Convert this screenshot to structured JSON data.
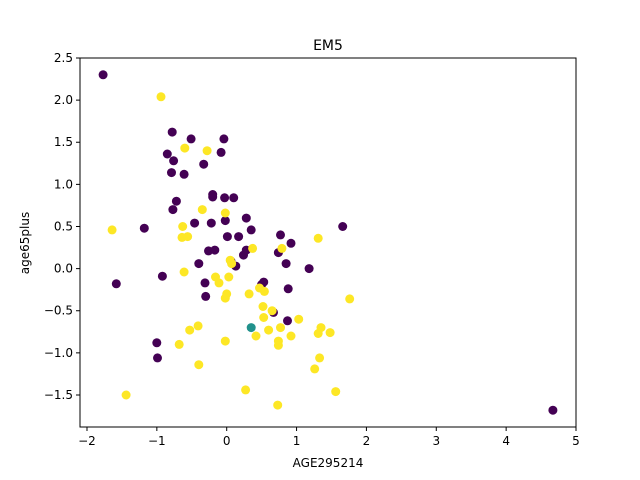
{
  "chart_data": {
    "type": "scatter",
    "title": "EM5",
    "xlabel": "AGE295214",
    "ylabel": "age65plus",
    "xlim": [
      -2.1,
      5.0
    ],
    "ylim": [
      -1.88,
      2.5
    ],
    "xticks": [
      -2,
      -1,
      0,
      1,
      2,
      3,
      4,
      5
    ],
    "yticks": [
      -1.5,
      -1.0,
      -0.5,
      0.0,
      0.5,
      1.0,
      1.5,
      2.0,
      2.5
    ],
    "tick_labels_x": [
      "−2",
      "−1",
      "0",
      "1",
      "2",
      "3",
      "4",
      "5"
    ],
    "tick_labels_y": [
      "−1.5",
      "−1.0",
      "−0.5",
      "0.0",
      "0.5",
      "1.0",
      "1.5",
      "2.0",
      "2.5"
    ],
    "grid": false,
    "colors": {
      "cluster_0": "#440154",
      "cluster_1": "#21918c",
      "cluster_2": "#fde725"
    },
    "series": [
      {
        "color": "#440154",
        "points": [
          [
            -1.77,
            2.3
          ],
          [
            -1.58,
            -0.18
          ],
          [
            -1.18,
            0.48
          ],
          [
            -1.0,
            -0.88
          ],
          [
            -0.99,
            -1.06
          ],
          [
            -0.92,
            -0.09
          ],
          [
            -0.85,
            1.36
          ],
          [
            -0.79,
            1.14
          ],
          [
            -0.78,
            1.62
          ],
          [
            -0.76,
            1.28
          ],
          [
            -0.77,
            0.7
          ],
          [
            -0.72,
            0.8
          ],
          [
            -0.61,
            1.12
          ],
          [
            -0.51,
            1.54
          ],
          [
            -0.46,
            0.54
          ],
          [
            -0.4,
            0.06
          ],
          [
            -0.33,
            1.24
          ],
          [
            -0.31,
            -0.17
          ],
          [
            -0.3,
            -0.33
          ],
          [
            -0.26,
            0.21
          ],
          [
            -0.22,
            0.54
          ],
          [
            -0.2,
            0.85
          ],
          [
            -0.2,
            0.88
          ],
          [
            -0.17,
            0.22
          ],
          [
            -0.08,
            1.38
          ],
          [
            -0.04,
            1.54
          ],
          [
            -0.03,
            0.84
          ],
          [
            -0.02,
            0.57
          ],
          [
            0.01,
            0.38
          ],
          [
            0.06,
            0.09
          ],
          [
            0.1,
            0.84
          ],
          [
            0.13,
            0.03
          ],
          [
            0.17,
            0.38
          ],
          [
            0.24,
            0.16
          ],
          [
            0.28,
            0.6
          ],
          [
            0.28,
            0.22
          ],
          [
            0.35,
            0.46
          ],
          [
            0.5,
            -0.19
          ],
          [
            0.53,
            -0.16
          ],
          [
            0.67,
            -0.52
          ],
          [
            0.74,
            0.19
          ],
          [
            0.77,
            0.4
          ],
          [
            0.85,
            0.06
          ],
          [
            0.87,
            -0.62
          ],
          [
            0.88,
            -0.24
          ],
          [
            0.92,
            0.3
          ],
          [
            1.18,
            0.0
          ],
          [
            1.66,
            0.5
          ],
          [
            4.67,
            -1.68
          ]
        ]
      },
      {
        "color": "#21918c",
        "points": [
          [
            0.35,
            -0.7
          ]
        ]
      },
      {
        "color": "#fde725",
        "points": [
          [
            -1.64,
            0.46
          ],
          [
            -1.44,
            -1.5
          ],
          [
            -0.94,
            2.04
          ],
          [
            -0.68,
            -0.9
          ],
          [
            -0.64,
            0.37
          ],
          [
            -0.63,
            0.5
          ],
          [
            -0.61,
            -0.04
          ],
          [
            -0.6,
            1.43
          ],
          [
            -0.56,
            0.38
          ],
          [
            -0.53,
            -0.73
          ],
          [
            -0.41,
            -0.68
          ],
          [
            -0.4,
            -1.14
          ],
          [
            -0.35,
            0.7
          ],
          [
            -0.28,
            1.4
          ],
          [
            -0.16,
            -0.1
          ],
          [
            -0.11,
            -0.17
          ],
          [
            -0.02,
            0.66
          ],
          [
            -0.02,
            -0.35
          ],
          [
            -0.02,
            -0.86
          ],
          [
            0.0,
            -0.3
          ],
          [
            0.03,
            -0.1
          ],
          [
            0.05,
            0.1
          ],
          [
            0.07,
            0.06
          ],
          [
            0.27,
            -1.44
          ],
          [
            0.32,
            -0.3
          ],
          [
            0.37,
            0.24
          ],
          [
            0.42,
            -0.8
          ],
          [
            0.47,
            -0.23
          ],
          [
            0.52,
            -0.45
          ],
          [
            0.54,
            -0.27
          ],
          [
            0.53,
            -0.58
          ],
          [
            0.6,
            -0.73
          ],
          [
            0.65,
            -0.5
          ],
          [
            0.73,
            -1.62
          ],
          [
            0.74,
            -0.86
          ],
          [
            0.74,
            -0.91
          ],
          [
            0.77,
            -0.7
          ],
          [
            0.79,
            0.24
          ],
          [
            0.92,
            -0.8
          ],
          [
            1.03,
            -0.6
          ],
          [
            1.26,
            -1.19
          ],
          [
            1.31,
            0.36
          ],
          [
            1.31,
            -0.77
          ],
          [
            1.33,
            -1.06
          ],
          [
            1.35,
            -0.7
          ],
          [
            1.48,
            -0.76
          ],
          [
            1.56,
            -1.46
          ],
          [
            1.76,
            -0.36
          ]
        ]
      }
    ]
  }
}
